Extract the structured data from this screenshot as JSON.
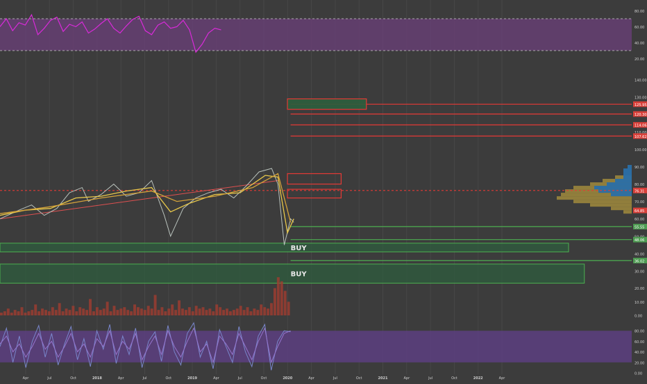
{
  "colors": {
    "background": "#3c3c3c",
    "grid": "#474747",
    "rsi": "#d92ad9",
    "rsi_band": "#6b3f7a",
    "price": "#b9c2bc",
    "ema_fast": "#e8c84a",
    "ema_slow": "#d4a23a",
    "trend": "#e05050",
    "resistance": "#e53935",
    "support": "#4caf50",
    "zone_fill": "#2c5e3d",
    "volume": "#a03c30",
    "stoch_k": "#7986cb",
    "stoch_d": "#9575cd",
    "stoch_band": "#5e3f85",
    "profile_blue": "#2a6fa8",
    "profile_gold": "#a08a3c",
    "axis_text": "#cfcfcf",
    "label_box_red": "#d9403a",
    "label_box_green": "#4e9b52"
  },
  "chart_data": [
    {
      "type": "line",
      "name": "rsi",
      "ylim": [
        10,
        90
      ],
      "band": [
        30,
        70
      ],
      "levels": [
        30,
        70
      ],
      "tick_labels": [
        "80.00",
        "60.00",
        "40.00",
        "20.00"
      ],
      "tick_values": [
        80,
        60,
        40,
        20
      ],
      "x_range": [
        0,
        100
      ],
      "x_end": 35,
      "series": [
        {
          "values": [
            60,
            70,
            55,
            65,
            62,
            75,
            50,
            58,
            68,
            72,
            54,
            63,
            60,
            66,
            52,
            57,
            64,
            70,
            58,
            52,
            61,
            69,
            73,
            55,
            50,
            62,
            66,
            58,
            60,
            68,
            56,
            28,
            38,
            52,
            58,
            56
          ]
        }
      ]
    },
    {
      "type": "line",
      "name": "price",
      "ylim": [
        28,
        146
      ],
      "tick_labels": [
        "140.00",
        "130.00",
        "120.00",
        "110.00",
        "100.00",
        "90.00",
        "80.00",
        "70.00",
        "60.00",
        "50.00",
        "40.00",
        "30.00",
        "20.00",
        "10.00",
        "0.00"
      ],
      "tick_values": [
        140,
        130,
        120,
        110,
        100,
        90,
        80,
        70,
        60,
        50,
        40,
        30,
        20,
        10,
        0
      ],
      "x_range": [
        0,
        100
      ],
      "x_end": 46,
      "series": [
        {
          "name": "price",
          "values": [
            [
              0,
              60
            ],
            [
              3,
              65
            ],
            [
              5,
              68
            ],
            [
              7,
              62
            ],
            [
              9,
              66
            ],
            [
              11,
              75
            ],
            [
              13,
              78
            ],
            [
              14,
              70
            ],
            [
              16,
              74
            ],
            [
              18,
              80
            ],
            [
              20,
              73
            ],
            [
              22,
              75
            ],
            [
              24,
              82
            ],
            [
              26,
              62
            ],
            [
              27,
              50
            ],
            [
              29,
              66
            ],
            [
              31,
              72
            ],
            [
              33,
              75
            ],
            [
              35,
              77
            ],
            [
              37,
              72
            ],
            [
              39,
              79
            ],
            [
              41,
              87
            ],
            [
              43,
              89
            ],
            [
              44,
              80
            ],
            [
              45,
              45
            ],
            [
              46,
              60
            ],
            [
              46.5,
              58
            ]
          ]
        },
        {
          "name": "ema_fast",
          "values": [
            [
              0,
              62
            ],
            [
              4,
              65
            ],
            [
              8,
              66
            ],
            [
              12,
              72
            ],
            [
              16,
              73
            ],
            [
              20,
              76
            ],
            [
              24,
              78
            ],
            [
              27,
              64
            ],
            [
              30,
              69
            ],
            [
              34,
              74
            ],
            [
              38,
              75
            ],
            [
              42,
              85
            ],
            [
              44,
              84
            ],
            [
              45.5,
              52
            ],
            [
              46.5,
              60
            ]
          ]
        },
        {
          "name": "ema_slow",
          "values": [
            [
              0,
              63
            ],
            [
              8,
              67
            ],
            [
              16,
              72
            ],
            [
              24,
              76
            ],
            [
              28,
              70
            ],
            [
              34,
              73
            ],
            [
              40,
              78
            ],
            [
              44,
              86
            ],
            [
              46,
              58
            ]
          ]
        }
      ],
      "trend_line": [
        [
          0,
          60
        ],
        [
          44,
          82
        ]
      ],
      "current_price": 76.31,
      "current_price_label": "76.31",
      "support_price_label": "64.85",
      "resistance_lines": [
        {
          "value": 125.95,
          "label": "125.95"
        },
        {
          "value": 120.3,
          "label": "120.30"
        },
        {
          "value": 114.06,
          "label": "114.06"
        },
        {
          "value": 107.62,
          "label": "107.62"
        }
      ],
      "resistance_zones": [
        {
          "x": [
            45.5,
            58
          ],
          "y": [
            123,
            129
          ]
        },
        {
          "x": [
            45.5,
            54
          ],
          "y": [
            80,
            86
          ]
        },
        {
          "x": [
            45.5,
            54
          ],
          "y": [
            72,
            77
          ]
        }
      ],
      "support_lines": [
        {
          "value": 55.55,
          "label": "55.55"
        },
        {
          "value": 48.06,
          "label": "48.06"
        },
        {
          "value": 36.02,
          "label": "36.02"
        }
      ],
      "buy_zones": [
        {
          "x": [
            0,
            90
          ],
          "y": [
            41,
            46
          ],
          "label": "BUY"
        },
        {
          "x": [
            0,
            92.5
          ],
          "y": [
            23,
            34
          ],
          "label": "BUY"
        }
      ],
      "volume_profile": {
        "gold": [
          [
            64,
            2
          ],
          [
            66,
            5
          ],
          [
            68,
            10
          ],
          [
            70,
            14
          ],
          [
            72,
            18
          ],
          [
            74,
            17
          ],
          [
            76,
            16
          ],
          [
            78,
            14
          ],
          [
            80,
            10
          ],
          [
            82,
            7
          ],
          [
            84,
            4
          ]
        ],
        "blue": [
          [
            74,
            5
          ],
          [
            76,
            8
          ],
          [
            78,
            9
          ],
          [
            80,
            6
          ],
          [
            82,
            4
          ],
          [
            84,
            2
          ],
          [
            86,
            2
          ],
          [
            88,
            2
          ],
          [
            90,
            1
          ]
        ]
      }
    },
    {
      "type": "bar",
      "name": "volume",
      "ylim": [
        0,
        30
      ],
      "x_range": [
        0,
        100
      ],
      "x_end": 46,
      "values": [
        2,
        3,
        5,
        2,
        4,
        3,
        6,
        2,
        3,
        4,
        8,
        3,
        5,
        4,
        3,
        6,
        4,
        9,
        3,
        5,
        4,
        7,
        3,
        6,
        5,
        4,
        12,
        3,
        6,
        4,
        5,
        10,
        3,
        7,
        4,
        5,
        6,
        4,
        3,
        8,
        6,
        5,
        4,
        7,
        5,
        15,
        4,
        6,
        3,
        5,
        8,
        4,
        11,
        5,
        4,
        6,
        3,
        7,
        5,
        6,
        4,
        5,
        3,
        8,
        6,
        4,
        5,
        3,
        4,
        5,
        7,
        4,
        6,
        3,
        5,
        4,
        8,
        6,
        5,
        9,
        20,
        28,
        25,
        18,
        10
      ]
    },
    {
      "type": "line",
      "name": "stoch",
      "ylim": [
        0,
        100
      ],
      "band": [
        20,
        80
      ],
      "tick_labels": [
        "80.00",
        "60.00",
        "40.00",
        "20.00",
        "0.00"
      ],
      "tick_values": [
        80,
        60,
        40,
        20,
        0
      ],
      "x_range": [
        0,
        100
      ],
      "x_end": 46,
      "series": [
        {
          "name": "k",
          "values": [
            50,
            85,
            20,
            70,
            10,
            60,
            90,
            30,
            75,
            15,
            55,
            88,
            25,
            65,
            12,
            80,
            45,
            92,
            18,
            70,
            35,
            85,
            10,
            60,
            78,
            22,
            90,
            40,
            15,
            75,
            95,
            30,
            60,
            8,
            82,
            50,
            20,
            88,
            40,
            12,
            70,
            92,
            5,
            60,
            80,
            78
          ]
        },
        {
          "name": "d",
          "values": [
            55,
            70,
            40,
            55,
            30,
            50,
            75,
            45,
            60,
            30,
            50,
            75,
            40,
            55,
            30,
            65,
            50,
            80,
            35,
            60,
            45,
            75,
            25,
            50,
            70,
            35,
            80,
            50,
            30,
            60,
            85,
            40,
            55,
            20,
            70,
            55,
            35,
            75,
            50,
            25,
            60,
            85,
            20,
            50,
            75,
            80
          ]
        }
      ]
    }
  ],
  "time_axis": {
    "labels": [
      "Apr",
      "Jul",
      "Oct",
      "2018",
      "Apr",
      "Jul",
      "Oct",
      "2019",
      "Apr",
      "Jul",
      "Oct",
      "2020",
      "Apr",
      "Jul",
      "Oct",
      "2021",
      "Apr",
      "Jul",
      "Oct",
      "2022",
      "Apr"
    ],
    "bold": [
      "2018",
      "2019",
      "2020",
      "2021",
      "2022"
    ]
  }
}
